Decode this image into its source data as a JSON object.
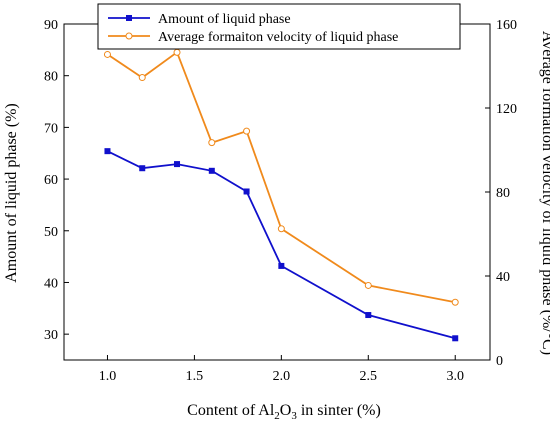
{
  "chart_data": {
    "type": "line",
    "xlabel_parts": {
      "pre": "Content of Al",
      "sub1": "2",
      "mid": "O",
      "sub2": "3",
      "post": " in sinter (%)"
    },
    "ylabel_left": "Amount of liquid phase (%)",
    "ylabel_right": "Average formation velocity of liquid phase (%/°C)",
    "xlim": [
      0.75,
      3.2
    ],
    "ylim_left": [
      25,
      90
    ],
    "ylim_right": [
      0,
      160
    ],
    "x_ticks": [
      1.0,
      1.5,
      2.0,
      2.5,
      3.0
    ],
    "x_tick_labels": [
      "1.0",
      "1.5",
      "2.0",
      "2.5",
      "3.0"
    ],
    "y_left_ticks": [
      30,
      40,
      50,
      60,
      70,
      80,
      90
    ],
    "y_left_tick_labels": [
      "30",
      "40",
      "50",
      "60",
      "70",
      "80",
      "90"
    ],
    "y_right_ticks": [
      0,
      40,
      80,
      120,
      160
    ],
    "y_right_tick_labels": [
      "0",
      "40",
      "80",
      "120",
      "160"
    ],
    "legend_position": "top-center",
    "series": [
      {
        "name": "Amount of liquid phase",
        "axis": "left",
        "color": "#1010cc",
        "marker": "filled-square",
        "x": [
          1.0,
          1.2,
          1.4,
          1.6,
          1.8,
          2.0,
          2.5,
          3.0
        ],
        "y": [
          65.4,
          62.1,
          62.9,
          61.6,
          57.6,
          43.2,
          33.7,
          29.2
        ]
      },
      {
        "name": "Average formaiton velocity of liquid phase",
        "axis": "right",
        "color": "#f08a1c",
        "marker": "open-circle",
        "x": [
          1.0,
          1.2,
          1.4,
          1.6,
          1.8,
          2.0,
          2.5,
          3.0
        ],
        "y": [
          145.5,
          134.5,
          146.5,
          103.5,
          109.0,
          62.5,
          35.5,
          27.5
        ]
      }
    ]
  }
}
